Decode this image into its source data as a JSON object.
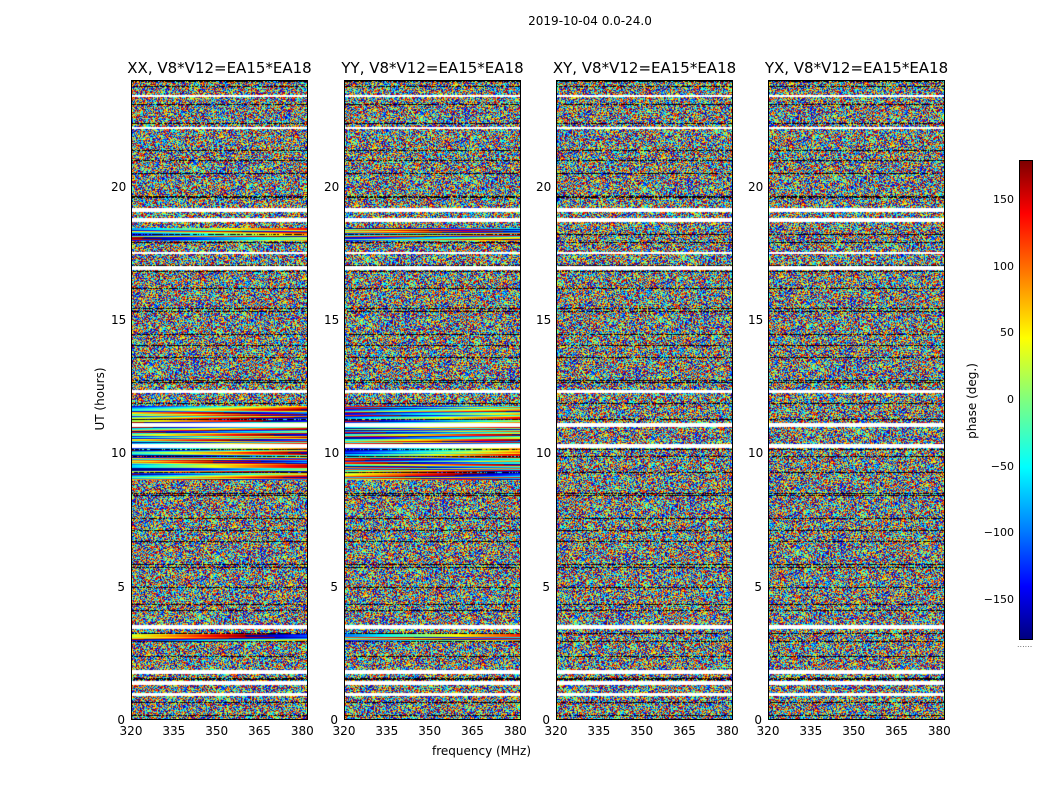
{
  "figure_title": "2019-10-04 0.0-24.0",
  "colors": {
    "colormap": [
      "#00007f",
      "#0000ff",
      "#007fff",
      "#00ffff",
      "#7fff7f",
      "#ffff00",
      "#ff7f00",
      "#ff0000",
      "#7f0000"
    ]
  },
  "chart_data": {
    "type": "heatmap",
    "title": "2019-10-04 0.0-24.0",
    "xlabel": "frequency (MHz)",
    "ylabel": "UT (hours)",
    "xlim": [
      320,
      382
    ],
    "ylim": [
      0,
      24
    ],
    "xticks": [
      "320",
      "335",
      "350",
      "365",
      "380"
    ],
    "yticks": [
      "0",
      "5",
      "10",
      "15",
      "20"
    ],
    "panels": [
      {
        "title": "XX, V8*V12=EA15*EA18",
        "polarization": "XX"
      },
      {
        "title": "YY, V8*V12=EA15*EA18",
        "polarization": "YY"
      },
      {
        "title": "XY, V8*V12=EA15*EA18",
        "polarization": "XY"
      },
      {
        "title": "YX, V8*V12=EA15*EA18",
        "polarization": "YX"
      }
    ],
    "colorbar": {
      "label": "phase (deg.)",
      "range": [
        -180,
        180
      ],
      "ticks": [
        "150",
        "100",
        "50",
        "0",
        "−50",
        "−100",
        "−150"
      ],
      "tick_values": [
        150,
        100,
        50,
        0,
        -50,
        -100,
        -150
      ],
      "dots": "......"
    },
    "data_note": "phase noise with flagged (white) and black-separated time bands"
  }
}
